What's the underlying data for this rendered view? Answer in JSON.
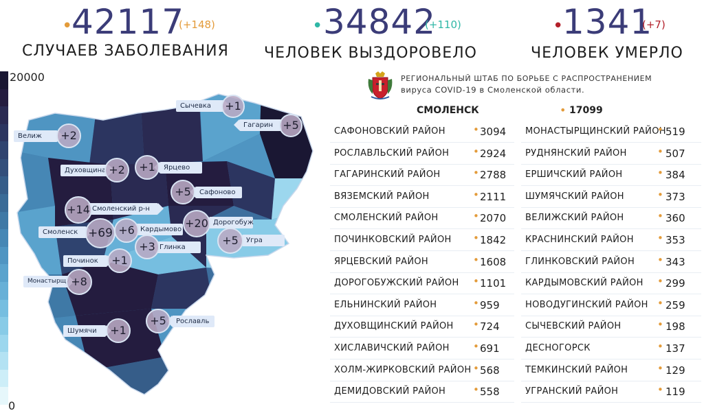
{
  "stats": [
    {
      "value": "42117",
      "delta": "(+148)",
      "label": "Случаев заболевания",
      "dot_color": "#e39b3a",
      "delta_color": "#e39b3a"
    },
    {
      "value": "34842",
      "delta": "(+110)",
      "label": "Человек выздоровело",
      "dot_color": "#2fb7a6",
      "delta_color": "#2fb7a6"
    },
    {
      "value": "1341",
      "delta": "(+7)",
      "label": "Человек умерло",
      "dot_color": "#b3202a",
      "delta_color": "#b3202a"
    }
  ],
  "legend": {
    "max_label": "20000",
    "min_label": "0",
    "colors": [
      "#1a1733",
      "#241c3f",
      "#2a2a52",
      "#2c3560",
      "#2f436f",
      "#334f7b",
      "#365d89",
      "#3a6b97",
      "#3f79a6",
      "#4687b5",
      "#4f95c2",
      "#5aa3cd",
      "#67b0d7",
      "#76bee0",
      "#88cbe7",
      "#9cd7ee",
      "#b3e2f3",
      "#cdeef8",
      "#e6f7fb"
    ]
  },
  "headquarters": {
    "line1": "Региональный штаб по борьбе с распространением",
    "line2": "вируса COVID-19 в Смоленской области."
  },
  "city": {
    "name": "Смоленск",
    "value": "17099"
  },
  "districts_left": [
    {
      "name": "Сафоновский район",
      "value": "3094"
    },
    {
      "name": "Рославльский район",
      "value": "2924"
    },
    {
      "name": "Гагаринский район",
      "value": "2788"
    },
    {
      "name": "Вяземский район",
      "value": "2111"
    },
    {
      "name": "Смоленский район",
      "value": "2070"
    },
    {
      "name": "Починковский район",
      "value": "1842"
    },
    {
      "name": "Ярцевский район",
      "value": "1608"
    },
    {
      "name": "Дорогобужский район",
      "value": "1101"
    },
    {
      "name": "Ельнинский район",
      "value": "959"
    },
    {
      "name": "Духовщинский район",
      "value": "724"
    },
    {
      "name": "Хиславичский район",
      "value": "691"
    },
    {
      "name": "Холм-Жирковский район",
      "value": "568"
    },
    {
      "name": "Демидовский район",
      "value": "558"
    }
  ],
  "districts_right": [
    {
      "name": "Монастырщинский район",
      "value": "519"
    },
    {
      "name": "Руднянский район",
      "value": "507"
    },
    {
      "name": "Ершичский район",
      "value": "384"
    },
    {
      "name": "Шумячский район",
      "value": "373"
    },
    {
      "name": "Велижский район",
      "value": "360"
    },
    {
      "name": "Краснинский район",
      "value": "353"
    },
    {
      "name": "Глинковский район",
      "value": "343"
    },
    {
      "name": "Кардымовский район",
      "value": "299"
    },
    {
      "name": "Новодугинский район",
      "value": "259"
    },
    {
      "name": "Сычевский район",
      "value": "198"
    },
    {
      "name": "Десногорск",
      "value": "137"
    },
    {
      "name": "Темкинский район",
      "value": "129"
    },
    {
      "name": "Угранский район",
      "value": "119"
    }
  ],
  "map_tags": [
    {
      "name": "Сычевка",
      "delta": "+1"
    },
    {
      "name": "Гагарин",
      "delta": "+5"
    },
    {
      "name": "Велиж",
      "delta": "+2"
    },
    {
      "name": "Духовщина",
      "delta": "+2"
    },
    {
      "name": "Ярцево",
      "delta": "+1"
    },
    {
      "name": "Сафоново",
      "delta": "+5"
    },
    {
      "name": "Смоленский р-н",
      "delta": "+14"
    },
    {
      "name": "Смоленск",
      "delta": "+69"
    },
    {
      "name": "Кардымово",
      "delta": "+6"
    },
    {
      "name": "Дорогобуж",
      "delta": "+20"
    },
    {
      "name": "Угра",
      "delta": "+5"
    },
    {
      "name": "Глинка",
      "delta": "+3"
    },
    {
      "name": "Починок",
      "delta": "+1"
    },
    {
      "name": "Монастырщина",
      "delta": "+8"
    },
    {
      "name": "Рославль",
      "delta": "+5"
    },
    {
      "name": "Шумячи",
      "delta": "+1"
    }
  ]
}
